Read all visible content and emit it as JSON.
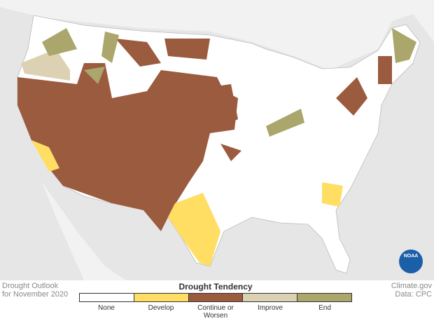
{
  "title": "Drought Outlook",
  "subtitle": "for November 2020",
  "legend": {
    "title": "Drought Tendency",
    "items": [
      {
        "label": "None",
        "color": "#ffffff"
      },
      {
        "label": "Develop",
        "color": "#ffde63"
      },
      {
        "label": "Continue or Worsen",
        "color": "#9b5b3e"
      },
      {
        "label": "Improve",
        "color": "#ddd1b4"
      },
      {
        "label": "End",
        "color": "#aaa66c"
      }
    ]
  },
  "credit": "Climate.gov",
  "source": "Data: CPC",
  "logo": "NOAA"
}
